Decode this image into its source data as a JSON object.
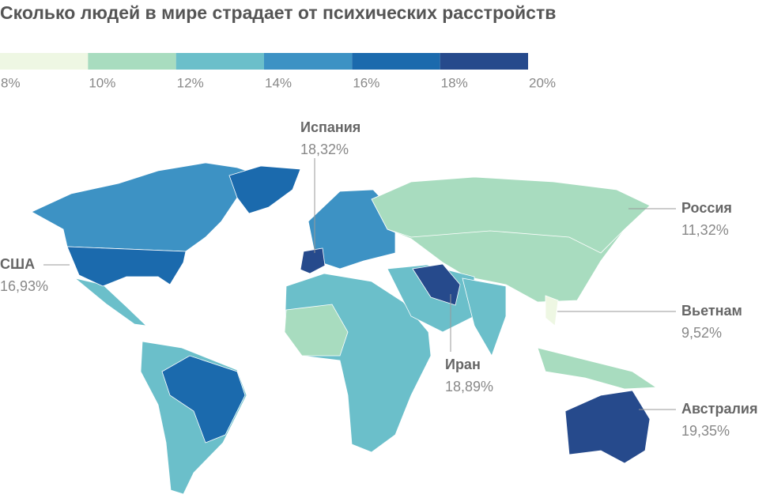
{
  "title": "Сколько людей в мире страдает от психических расстройств",
  "legend": {
    "bins": [
      {
        "value": 8,
        "label": "8%"
      },
      {
        "value": 10,
        "label": "10%"
      },
      {
        "value": 12,
        "label": "12%"
      },
      {
        "value": 14,
        "label": "14%"
      },
      {
        "value": 16,
        "label": "16%"
      },
      {
        "value": 18,
        "label": "18%"
      },
      {
        "value": 20,
        "label": "20%"
      }
    ],
    "colors": [
      "#eef7e3",
      "#a8dcbf",
      "#6bbfca",
      "#3d92c4",
      "#1b6aad",
      "#264a8c"
    ]
  },
  "annotations": [
    {
      "country": "Испания",
      "value": 18.32,
      "label": "18,32%"
    },
    {
      "country": "США",
      "value": 16.93,
      "label": "16,93%"
    },
    {
      "country": "Россия",
      "value": 11.32,
      "label": "11,32%"
    },
    {
      "country": "Вьетнам",
      "value": 9.52,
      "label": "9,52%"
    },
    {
      "country": "Иран",
      "value": 18.89,
      "label": "18,89%"
    },
    {
      "country": "Австралия",
      "value": 19.35,
      "label": "19,35%"
    }
  ]
}
